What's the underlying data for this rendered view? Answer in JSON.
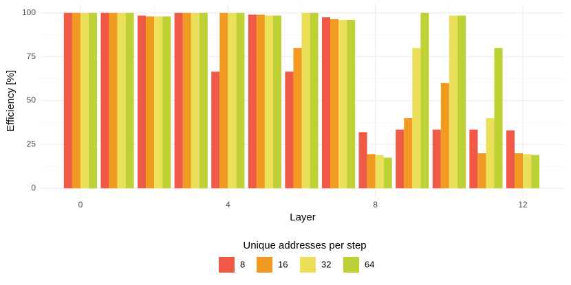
{
  "chart_data": {
    "type": "bar",
    "x_label": "Layer",
    "y_label": "Efficiency [%]",
    "x": [
      0,
      1,
      2,
      3,
      4,
      5,
      6,
      7,
      8,
      9,
      10,
      11,
      12
    ],
    "xlim": [
      -1.1,
      13.1
    ],
    "xticks": [
      0,
      4,
      8,
      12
    ],
    "ylim": [
      -5,
      105
    ],
    "yticks": [
      0,
      25,
      50,
      75,
      100
    ],
    "grid": true,
    "legend_position": "bottom",
    "legend_title": "Unique addresses per step",
    "series": [
      {
        "name": "8",
        "color": "#ee5a45",
        "values": [
          100,
          100,
          98.5,
          100,
          66.5,
          99,
          66.5,
          97.5,
          32,
          33.5,
          33.5,
          33.5,
          33
        ]
      },
      {
        "name": "16",
        "color": "#f29b22",
        "values": [
          100,
          100,
          98,
          100,
          100,
          99,
          80,
          96.5,
          19.5,
          40,
          60,
          20,
          20
        ]
      },
      {
        "name": "32",
        "color": "#ece05a",
        "values": [
          100,
          100,
          98,
          100,
          100,
          98.5,
          100,
          96,
          19,
          80,
          98.5,
          40,
          19.5
        ]
      },
      {
        "name": "64",
        "color": "#bfd235",
        "values": [
          100,
          100,
          98,
          100,
          100,
          98.5,
          100,
          96,
          17.5,
          100,
          98.5,
          80,
          19
        ]
      }
    ]
  }
}
